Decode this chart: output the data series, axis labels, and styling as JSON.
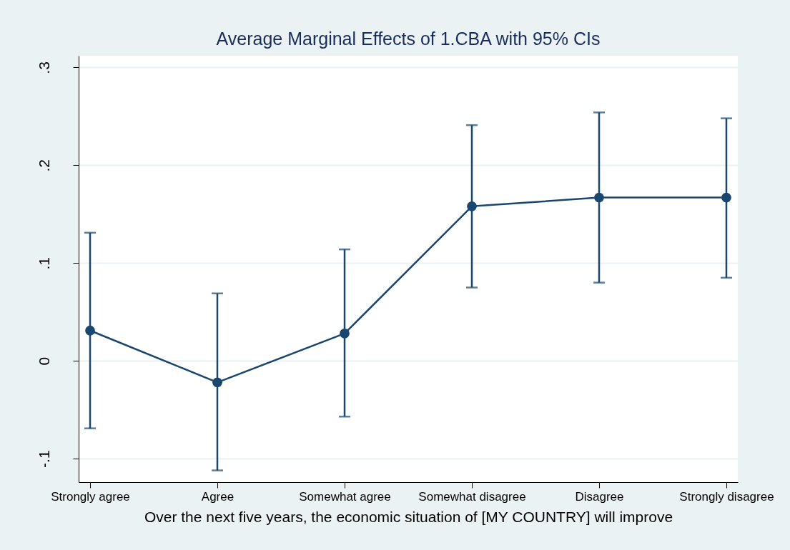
{
  "chart_data": {
    "type": "line",
    "title": "Average Marginal Effects of 1.CBA with 95% CIs",
    "xlabel": "Over the next five years, the economic situation of [MY COUNTRY] will improve",
    "categories": [
      "Strongly agree",
      "Agree",
      "Somewhat agree",
      "Somewhat disagree",
      "Disagree",
      "Strongly disagree"
    ],
    "series": [
      {
        "color": "#1a476f",
        "values": [
          0.031,
          -0.022,
          0.028,
          0.158,
          0.167,
          0.167
        ],
        "errors": [
          [
            -0.069,
            0.131
          ],
          [
            -0.112,
            0.069
          ],
          [
            -0.057,
            0.114
          ],
          [
            0.075,
            0.241
          ],
          [
            0.08,
            0.254
          ],
          [
            0.085,
            0.248
          ]
        ]
      }
    ],
    "ylim": [
      -0.124,
      0.312
    ],
    "yticks": [
      {
        "value": -0.1,
        "label": "-.1"
      },
      {
        "value": 0,
        "label": "0"
      },
      {
        "value": 0.1,
        "label": ".1"
      },
      {
        "value": 0.2,
        "label": ".2"
      },
      {
        "value": 0.3,
        "label": ".3"
      }
    ],
    "grid": "y",
    "marker": "circle",
    "line_style": "solid"
  }
}
